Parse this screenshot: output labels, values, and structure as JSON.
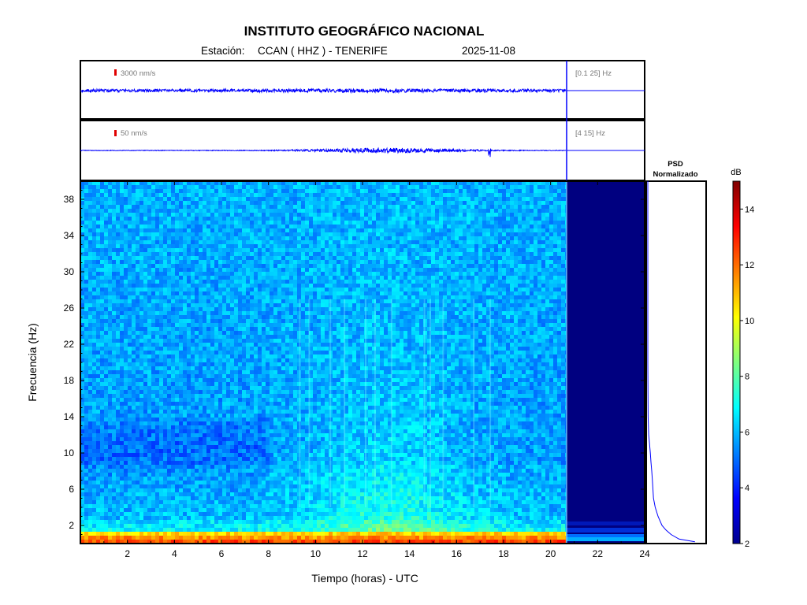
{
  "header": {
    "title": "INSTITUTO GEOGRÁFICO NACIONAL",
    "station_label": "Estación:",
    "station": "CCAN ( HHZ ) - TENERIFE",
    "date": "2025-11-08"
  },
  "panels": {
    "trace1": {
      "amplitude_scale": "3000 nm/s",
      "band": "[0.1 25] Hz"
    },
    "trace2": {
      "amplitude_scale": "50 nm/s",
      "band": "[4 15] Hz"
    }
  },
  "psd_title": [
    "PSD",
    "Normalizado"
  ],
  "colorbar": {
    "unit": "dB",
    "range": [
      2,
      15
    ],
    "ticks": [
      2,
      4,
      6,
      8,
      10,
      12,
      14
    ],
    "colors": [
      "#00008f",
      "#0000ff",
      "#0080ff",
      "#00ffff",
      "#80ff80",
      "#ffff00",
      "#ff8000",
      "#ff0000",
      "#800000"
    ]
  },
  "chart_data": {
    "type": "heatmap",
    "title": "INSTITUTO GEOGRÁFICO NACIONAL",
    "xlabel": "Tiempo (horas) - UTC",
    "ylabel": "Frecuencia  (Hz)",
    "xlim": [
      0,
      24
    ],
    "ylim": [
      0,
      40
    ],
    "x_ticks": [
      2,
      4,
      6,
      8,
      10,
      12,
      14,
      16,
      18,
      20,
      22,
      24
    ],
    "y_ticks": [
      2,
      6,
      10,
      14,
      18,
      22,
      26,
      30,
      34,
      38
    ],
    "data_end_hour": 20.65,
    "psd_normalized": {
      "freq_hz": [
        0.2,
        0.5,
        1,
        1.5,
        2,
        3,
        4,
        5,
        6,
        7,
        8,
        9,
        10,
        11,
        12,
        14,
        20,
        30,
        40
      ],
      "value": [
        0.83,
        0.55,
        0.41,
        0.32,
        0.25,
        0.18,
        0.13,
        0.1,
        0.09,
        0.08,
        0.07,
        0.055,
        0.045,
        0.03,
        0.015,
        0.005,
        0.0,
        0.0,
        0.0
      ]
    }
  }
}
